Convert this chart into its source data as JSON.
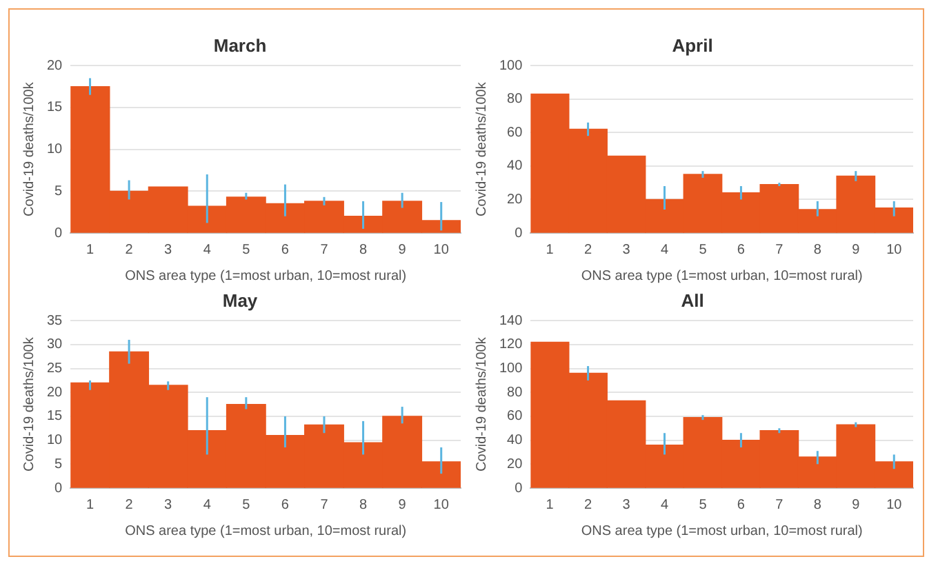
{
  "chart_data": [
    {
      "type": "bar",
      "title": "March",
      "xlabel": "ONS area type (1=most urban, 10=most rural)",
      "ylabel": "Covid-19 deaths/100k",
      "categories": [
        "1",
        "2",
        "3",
        "4",
        "5",
        "6",
        "7",
        "8",
        "9",
        "10"
      ],
      "values": [
        17.5,
        5,
        5.5,
        3.2,
        4.3,
        3.5,
        3.8,
        2,
        3.8,
        1.5
      ],
      "color": "#e8561e",
      "errors": [
        [
          16.5,
          18.5
        ],
        [
          4,
          6.3
        ],
        null,
        [
          1.2,
          7
        ],
        [
          4,
          4.8
        ],
        [
          2,
          5.8
        ],
        [
          3.3,
          4.3
        ],
        [
          0.5,
          3.8
        ],
        [
          3,
          4.8
        ],
        [
          0.3,
          3.7
        ]
      ],
      "ylim": [
        0,
        20
      ],
      "yticks": [
        0,
        5,
        10,
        15,
        20
      ],
      "grid": "y"
    },
    {
      "type": "bar",
      "title": "April",
      "xlabel": "ONS area type (1=most urban, 10=most rural)",
      "ylabel": "Covid-19 deaths/100k",
      "categories": [
        "1",
        "2",
        "3",
        "4",
        "5",
        "6",
        "7",
        "8",
        "9",
        "10"
      ],
      "values": [
        83,
        62,
        46,
        20,
        35,
        24,
        29,
        14,
        34,
        15
      ],
      "color": "#e8561e",
      "errors": [
        null,
        [
          58,
          66
        ],
        null,
        [
          14,
          28
        ],
        [
          33,
          37
        ],
        [
          20,
          28
        ],
        [
          28,
          30
        ],
        [
          10,
          19
        ],
        [
          31,
          37
        ],
        [
          10,
          19
        ]
      ],
      "ylim": [
        0,
        100
      ],
      "yticks": [
        0,
        20,
        40,
        60,
        80,
        100
      ],
      "grid": "y"
    },
    {
      "type": "bar",
      "title": "May",
      "xlabel": "ONS area type (1=most urban, 10=most rural)",
      "ylabel": "Covid-19 deaths/100k",
      "categories": [
        "1",
        "2",
        "3",
        "4",
        "5",
        "6",
        "7",
        "8",
        "9",
        "10"
      ],
      "values": [
        22,
        28.5,
        21.5,
        12,
        17.5,
        11,
        13.2,
        9.5,
        15,
        5.5
      ],
      "color": "#e8561e",
      "errors": [
        [
          20.5,
          22.5
        ],
        [
          26,
          31
        ],
        [
          20.5,
          22.3
        ],
        [
          7,
          19
        ],
        [
          16.5,
          19
        ],
        [
          8.5,
          15
        ],
        [
          11.5,
          15
        ],
        [
          7,
          14
        ],
        [
          13.5,
          17
        ],
        [
          3,
          8.5
        ]
      ],
      "ylim": [
        0,
        35
      ],
      "yticks": [
        0,
        5,
        10,
        15,
        20,
        25,
        30,
        35
      ],
      "grid": "y"
    },
    {
      "type": "bar",
      "title": "All",
      "xlabel": "ONS area type (1=most urban, 10=most rural)",
      "ylabel": "Covid-19 deaths/100k",
      "categories": [
        "1",
        "2",
        "3",
        "4",
        "5",
        "6",
        "7",
        "8",
        "9",
        "10"
      ],
      "values": [
        122,
        96,
        73,
        36,
        59,
        40,
        48,
        26,
        53,
        22
      ],
      "color": "#e8561e",
      "errors": [
        null,
        [
          90,
          102
        ],
        null,
        [
          28,
          46
        ],
        [
          57,
          61
        ],
        [
          34,
          46
        ],
        [
          46,
          50
        ],
        [
          20,
          31
        ],
        [
          51,
          55
        ],
        [
          16,
          28
        ]
      ],
      "ylim": [
        0,
        140
      ],
      "yticks": [
        0,
        20,
        40,
        60,
        80,
        100,
        120,
        140
      ],
      "grid": "y"
    }
  ]
}
